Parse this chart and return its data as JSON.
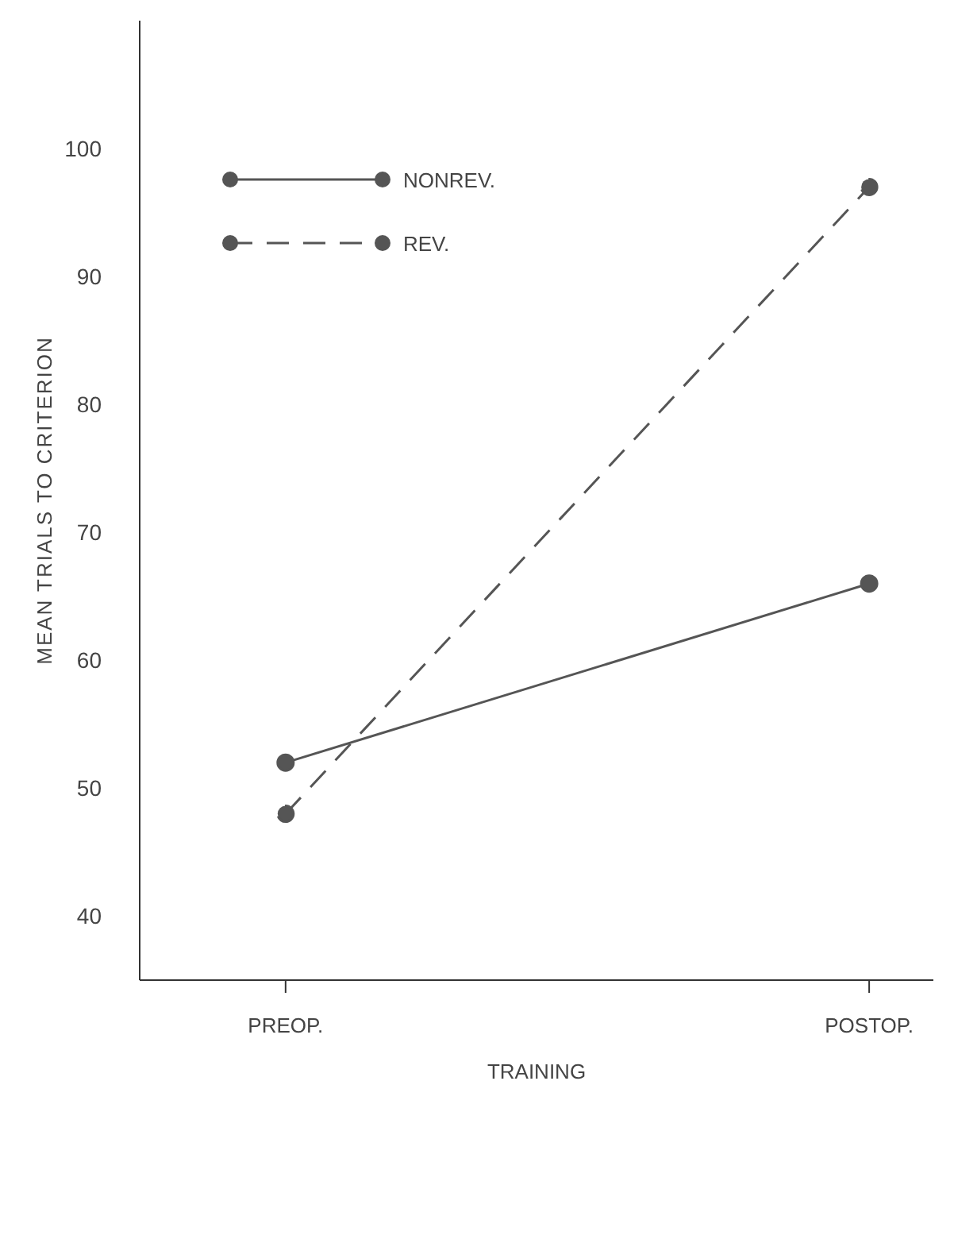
{
  "chart_data": {
    "type": "line",
    "xlabel": "TRAINING",
    "ylabel": "MEAN TRIALS TO CRITERION",
    "categories": [
      "PREOP.",
      "POSTOP."
    ],
    "series": [
      {
        "name": "NONREV.",
        "color": "#555555",
        "values": [
          52,
          66
        ],
        "line_style": "solid"
      },
      {
        "name": "REV.",
        "color": "#555555",
        "values": [
          48,
          97
        ],
        "line_style": "dashed"
      }
    ],
    "ylim": [
      35,
      110
    ],
    "yticks": [
      40,
      50,
      60,
      70,
      80,
      90,
      100
    ],
    "grid": false,
    "legend": "top left",
    "marker": "circle"
  }
}
